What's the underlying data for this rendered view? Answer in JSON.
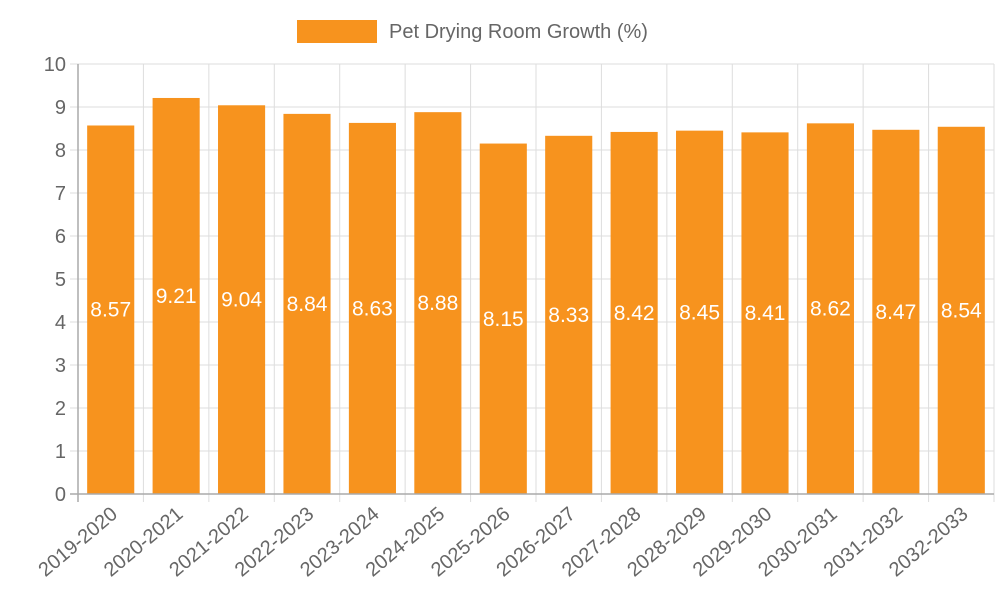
{
  "chart_data": {
    "type": "bar",
    "title": "",
    "xlabel": "",
    "ylabel": "",
    "legend": {
      "label": "Pet Drying Room Growth (%)",
      "position": "top-center"
    },
    "categories": [
      "2019-2020",
      "2020-2021",
      "2021-2022",
      "2022-2023",
      "2023-2024",
      "2024-2025",
      "2025-2026",
      "2026-2027",
      "2027-2028",
      "2028-2029",
      "2029-2030",
      "2030-2031",
      "2031-2032",
      "2032-2033"
    ],
    "values": [
      8.57,
      9.21,
      9.04,
      8.84,
      8.63,
      8.88,
      8.15,
      8.33,
      8.42,
      8.45,
      8.41,
      8.62,
      8.47,
      8.54
    ],
    "value_labels": [
      "8.57",
      "9.21",
      "9.04",
      "8.84",
      "8.63",
      "8.88",
      "8.15",
      "8.33",
      "8.42",
      "8.45",
      "8.41",
      "8.62",
      "8.47",
      "8.54"
    ],
    "ylim": [
      0,
      10
    ],
    "yticks": [
      "0",
      "1",
      "2",
      "3",
      "4",
      "5",
      "6",
      "7",
      "8",
      "9",
      "10"
    ],
    "grid": true
  },
  "colors": {
    "bar": "#f7931e",
    "bar_label": "#ffffff",
    "grid": "#dddddd",
    "axis": "#aaaaaa",
    "tick_text": "#666666",
    "legend_text": "#666666"
  }
}
